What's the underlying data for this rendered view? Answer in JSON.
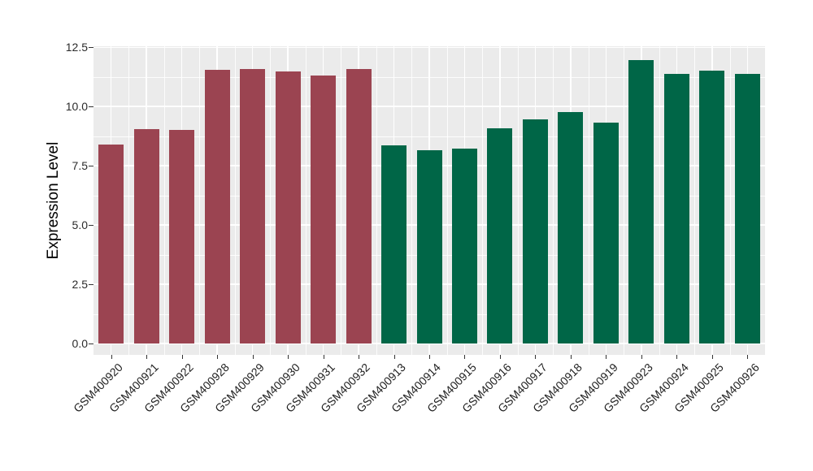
{
  "chart_data": {
    "type": "bar",
    "title": "",
    "xlabel": "",
    "ylabel": "Expression Level",
    "categories": [
      "GSM400920",
      "GSM400921",
      "GSM400922",
      "GSM400928",
      "GSM400929",
      "GSM400930",
      "GSM400931",
      "GSM400932",
      "GSM400913",
      "GSM400914",
      "GSM400915",
      "GSM400916",
      "GSM400917",
      "GSM400918",
      "GSM400919",
      "GSM400923",
      "GSM400924",
      "GSM400925",
      "GSM400926"
    ],
    "values": [
      8.39,
      9.05,
      9.01,
      11.56,
      11.59,
      11.47,
      11.32,
      11.58,
      8.36,
      8.15,
      8.21,
      9.07,
      9.47,
      9.77,
      9.33,
      11.96,
      11.39,
      11.53,
      11.37
    ],
    "bar_colors": [
      "#9B4451",
      "#9B4451",
      "#9B4451",
      "#9B4451",
      "#9B4451",
      "#9B4451",
      "#9B4451",
      "#9B4451",
      "#006647",
      "#006647",
      "#006647",
      "#006647",
      "#006647",
      "#006647",
      "#006647",
      "#006647",
      "#006647",
      "#006647",
      "#006647"
    ],
    "group_colors": {
      "maroon_group": "#9B4451",
      "green_group": "#006647"
    },
    "y_tick_labels": [
      "0.0",
      "2.5",
      "5.0",
      "7.5",
      "10.0",
      "12.5"
    ],
    "y_ticks": [
      0,
      2.5,
      5,
      7.5,
      10,
      12.5
    ],
    "y_minor_ticks": [
      1.25,
      3.75,
      6.25,
      8.75,
      11.25
    ],
    "ylim": [
      0,
      12.5
    ],
    "grid": true,
    "legend": "none",
    "panel_bg": "#EBEBEB",
    "grid_color": "#FFFFFF",
    "axis_text_color": "#1f1f1f"
  }
}
